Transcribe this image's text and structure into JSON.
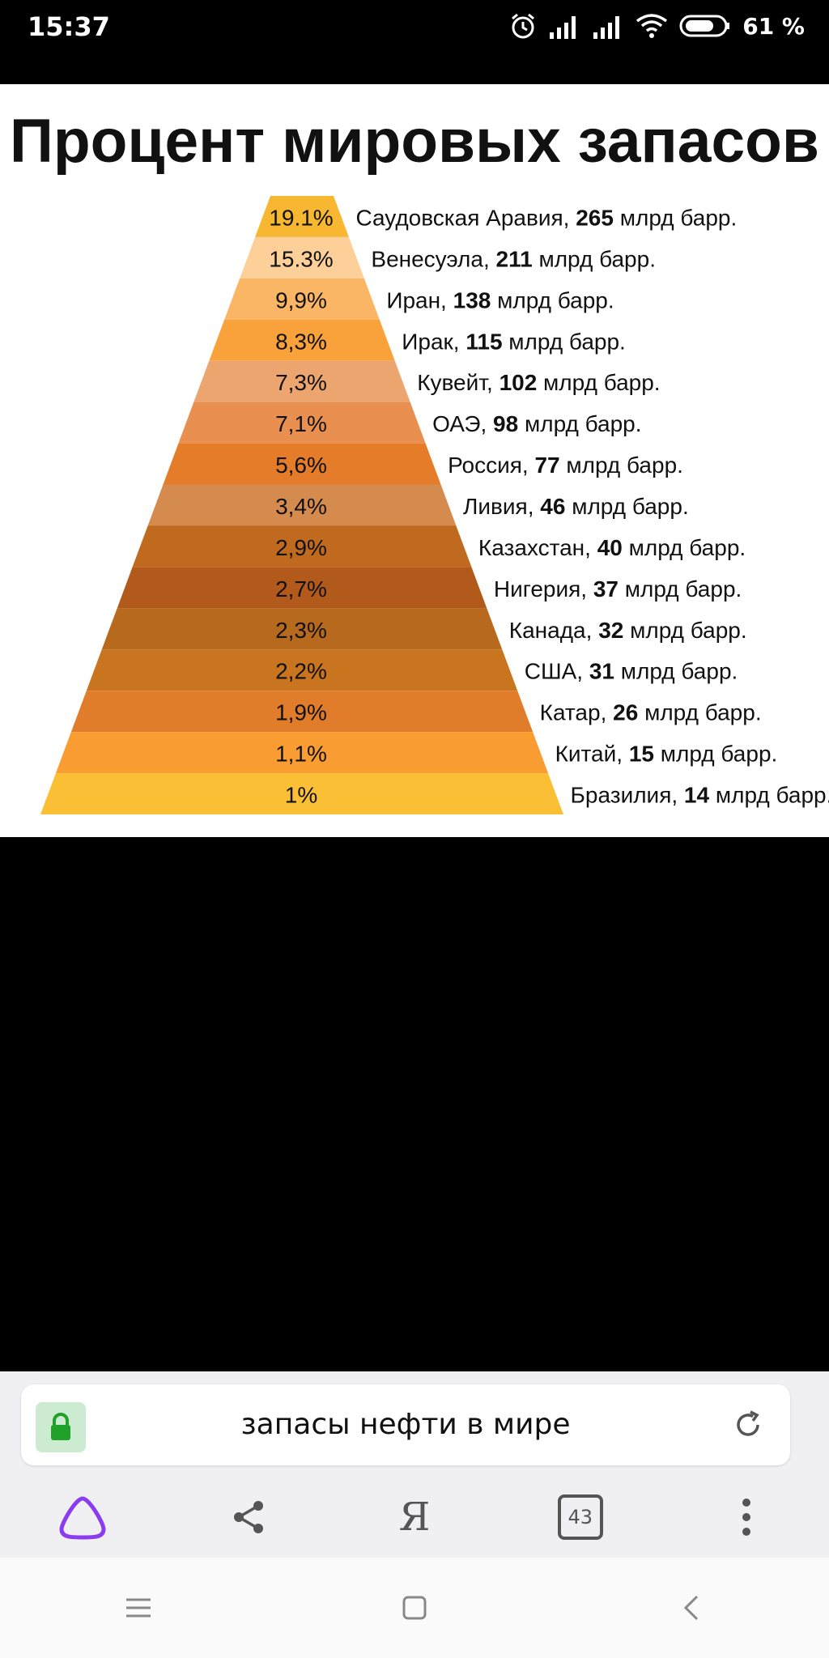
{
  "status_bar": {
    "time": "15:37",
    "battery_percent": "61 %",
    "icons": [
      "alarm-icon",
      "signal-icon",
      "signal-icon",
      "wifi-icon",
      "battery-icon"
    ]
  },
  "chart_data": {
    "type": "pyramid",
    "title": "Процент мировых запасов",
    "unit_label": "млрд барр.",
    "rows": [
      {
        "percent": "19.1%",
        "country": "Саудовская Аравия",
        "value": "265",
        "color": "#f7b731"
      },
      {
        "percent": "15.3%",
        "country": "Венесуэла",
        "value": "211",
        "color": "#fdd09a"
      },
      {
        "percent": "9,9%",
        "country": "Иран",
        "value": "138",
        "color": "#fbb665"
      },
      {
        "percent": "8,3%",
        "country": "Ирак",
        "value": "115",
        "color": "#f9a23b"
      },
      {
        "percent": "7,3%",
        "country": "Кувейт",
        "value": "102",
        "color": "#eda56f"
      },
      {
        "percent": "7,1%",
        "country": "ОАЭ",
        "value": "98",
        "color": "#e99050"
      },
      {
        "percent": "5,6%",
        "country": "Россия",
        "value": "77",
        "color": "#e57c2a"
      },
      {
        "percent": "3,4%",
        "country": "Ливия",
        "value": "46",
        "color": "#d58b4e"
      },
      {
        "percent": "2,9%",
        "country": "Казахстан",
        "value": "40",
        "color": "#c06a20"
      },
      {
        "percent": "2,7%",
        "country": "Нигерия",
        "value": "37",
        "color": "#b25a1b"
      },
      {
        "percent": "2,3%",
        "country": "Канада",
        "value": "32",
        "color": "#b7691e"
      },
      {
        "percent": "2,2%",
        "country": "США",
        "value": "31",
        "color": "#c9741f"
      },
      {
        "percent": "1,9%",
        "country": "Катар",
        "value": "26",
        "color": "#e07c2a"
      },
      {
        "percent": "1,1%",
        "country": "Китай",
        "value": "15",
        "color": "#f99d32"
      },
      {
        "percent": "1%",
        "country": "Бразилия",
        "value": "14",
        "color": "#fbbf35"
      }
    ]
  },
  "browser": {
    "url_text": "запасы нефти в мире",
    "tabs_count": "43",
    "yandex_label": "Я",
    "lock_color": "#1fa12a",
    "alice_color": "#8b3cf0"
  },
  "navigation": {
    "buttons": [
      "menu-icon",
      "home-icon",
      "back-icon"
    ]
  }
}
